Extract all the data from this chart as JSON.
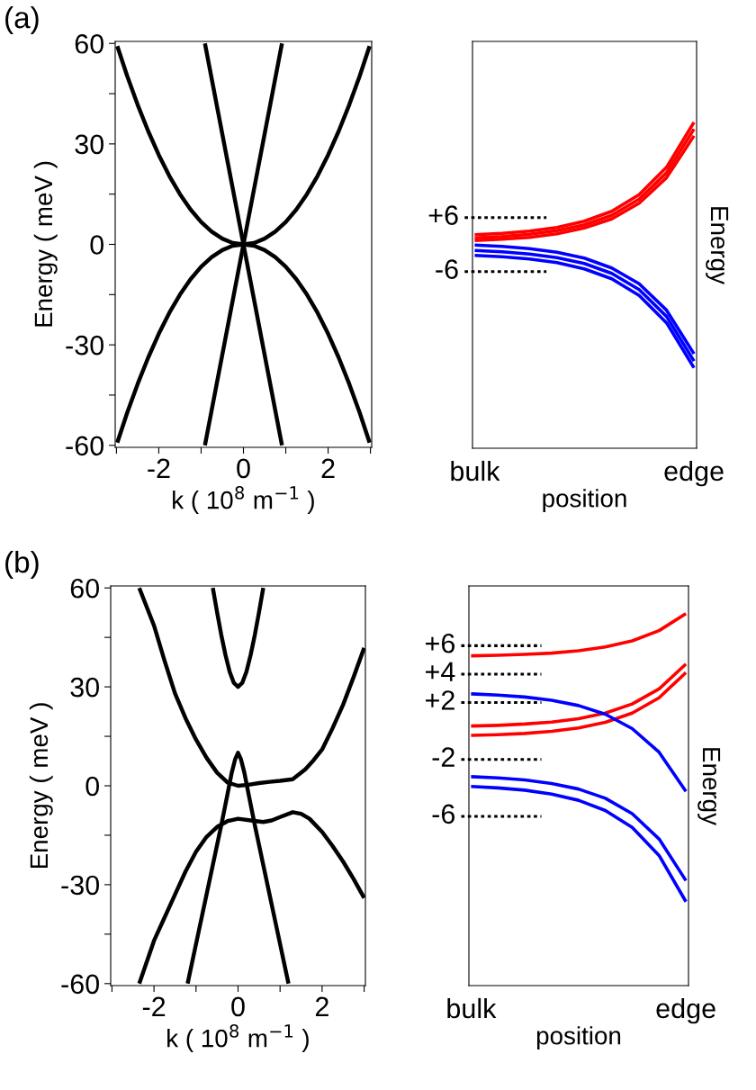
{
  "chart_data": [
    {
      "type": "line",
      "title": "(a)",
      "xlabel": "k ( 10$^{8}$ m$^{−1}$ )",
      "ylabel": "Energy ( meV )",
      "xlim": [
        -3.03,
        3.03
      ],
      "ylim": [
        -60.6,
        60.6
      ],
      "xticks": [
        {
          "value": -3,
          "label": null
        },
        -2,
        {
          "value": -1,
          "label": null
        },
        0,
        {
          "value": 1,
          "label": null
        },
        2,
        {
          "value": 3,
          "label": null
        }
      ],
      "yticks": [
        -60,
        {
          "value": -45,
          "label": null
        },
        -30,
        {
          "value": -15,
          "label": null
        },
        0,
        {
          "value": 15,
          "label": null
        },
        30,
        {
          "value": 45,
          "label": null
        },
        60
      ],
      "series": [
        {
          "color": "#000000",
          "x": [
            -2.98,
            -2.75,
            -2.5,
            -2.25,
            -2,
            -1.75,
            -1.5,
            -1.25,
            -1,
            -0.75,
            -0.5,
            -0.25,
            0,
            0.25,
            0.5,
            0.75,
            1,
            1.25,
            1.5,
            1.75,
            2,
            2.25,
            2.5,
            2.75,
            2.98
          ],
          "values": [
            59.2,
            50.4,
            41.7,
            33.8,
            26.7,
            20.4,
            15,
            10.4,
            6.7,
            3.8,
            1.7,
            0.4,
            0,
            0.4,
            1.7,
            3.8,
            6.7,
            10.4,
            15,
            20.4,
            26.7,
            33.8,
            41.7,
            50.4,
            59.2
          ]
        },
        {
          "color": "#000000",
          "x": [
            -2.98,
            -2.75,
            -2.5,
            -2.25,
            -2,
            -1.75,
            -1.5,
            -1.25,
            -1,
            -0.75,
            -0.5,
            -0.25,
            0,
            0.25,
            0.5,
            0.75,
            1,
            1.25,
            1.5,
            1.75,
            2,
            2.25,
            2.5,
            2.75,
            2.98
          ],
          "values": [
            -59.2,
            -50.4,
            -41.7,
            -33.8,
            -26.7,
            -20.4,
            -15,
            -10.4,
            -6.7,
            -3.8,
            -1.7,
            -0.4,
            0,
            -0.4,
            -1.7,
            -3.8,
            -6.7,
            -10.4,
            -15,
            -20.4,
            -26.7,
            -33.8,
            -41.7,
            -50.4,
            -59.2
          ]
        },
        {
          "color": "#000000",
          "x": [
            -0.91,
            0,
            0.91
          ],
          "values": [
            60,
            0,
            -60
          ]
        },
        {
          "color": "#000000",
          "x": [
            -0.91,
            0,
            0.91
          ],
          "values": [
            -60,
            0,
            60
          ]
        }
      ]
    },
    {
      "type": "line",
      "xlabel": "position",
      "ylabel": "Energy",
      "ylim": [
        -45.3,
        45.2
      ],
      "categories": [
        "bulk",
        null,
        null,
        null,
        null,
        null,
        null,
        null,
        "edge"
      ],
      "ref_lines": [
        {
          "axis": "y",
          "value": 6,
          "label": "+6",
          "color": "#000000",
          "line_style": "dotted"
        },
        {
          "axis": "y",
          "value": -6,
          "label": "-6",
          "color": "#000000",
          "line_style": "dotted"
        }
      ],
      "series": [
        {
          "color": "#ff0000",
          "values": [
            2.2,
            2.5,
            3.0,
            3.8,
            5.2,
            7.4,
            11.1,
            17.2,
            27.2
          ]
        },
        {
          "color": "#ff0000",
          "values": [
            1.5,
            1.8,
            2.3,
            3.1,
            4.4,
            6.5,
            10.1,
            16.0,
            25.7
          ]
        },
        {
          "color": "#ff0000",
          "values": [
            0.9,
            1.2,
            1.6,
            2.4,
            3.7,
            5.7,
            9.2,
            14.9,
            24.2
          ]
        },
        {
          "color": "#0000ff",
          "values": [
            -0.1,
            -0.4,
            -0.9,
            -1.7,
            -3.0,
            -5.2,
            -8.7,
            -14.6,
            -24.3
          ]
        },
        {
          "color": "#0000ff",
          "values": [
            -1.3,
            -1.6,
            -2.1,
            -2.9,
            -4.2,
            -6.4,
            -10.0,
            -16.0,
            -25.9
          ]
        },
        {
          "color": "#0000ff",
          "values": [
            -2.4,
            -2.7,
            -3.2,
            -4.0,
            -5.4,
            -7.6,
            -11.3,
            -17.4,
            -27.4
          ]
        }
      ]
    },
    {
      "type": "line",
      "title": "(b)",
      "xlabel": "k ( 10$^{8}$ m$^{−1}$ )",
      "ylabel": "Energy ( meV )",
      "xlim": [
        -3.03,
        3.03
      ],
      "ylim": [
        -60.6,
        60.6
      ],
      "xticks": [
        {
          "value": -3,
          "label": null
        },
        -2,
        {
          "value": -1,
          "label": null
        },
        0,
        {
          "value": 1,
          "label": null
        },
        2,
        {
          "value": 3,
          "label": null
        }
      ],
      "yticks": [
        -60,
        {
          "value": -45,
          "label": null
        },
        -30,
        {
          "value": -15,
          "label": null
        },
        0,
        {
          "value": 15,
          "label": null
        },
        30,
        {
          "value": 45,
          "label": null
        },
        60
      ],
      "series": [
        {
          "color": "#000000",
          "x": [
            -0.6,
            -0.5,
            -0.4,
            -0.3,
            -0.2,
            -0.1,
            0,
            0.1,
            0.2,
            0.3,
            0.4,
            0.5,
            0.6
          ],
          "values": [
            60,
            52.7,
            45.8,
            39.7,
            34.6,
            31.2,
            30,
            31.2,
            34.6,
            39.7,
            45.8,
            52.7,
            60
          ]
        },
        {
          "color": "#000000",
          "x": [
            -2.35,
            -2,
            -1.75,
            -1.5,
            -1.25,
            -1,
            -0.75,
            -0.5,
            -0.25,
            0,
            0.25,
            0.5,
            0.75,
            1,
            1.3,
            1.6,
            1.8,
            2,
            2.25,
            2.5,
            2.75,
            3
          ],
          "values": [
            60,
            48.6,
            38,
            28,
            20.5,
            14,
            8.5,
            4,
            1,
            0,
            0.3,
            0.8,
            1.2,
            1.5,
            2,
            5,
            7.8,
            11,
            17.5,
            24.6,
            33,
            41.8
          ]
        },
        {
          "color": "#000000",
          "x": [
            -2.35,
            -2,
            -1.75,
            -1.5,
            -1.25,
            -1,
            -0.75,
            -0.5,
            -0.25,
            0,
            0.3,
            0.6,
            0.8,
            1,
            1.3,
            1.5,
            1.7,
            2,
            2.25,
            2.5,
            2.75,
            3
          ],
          "values": [
            -60,
            -47,
            -40,
            -33,
            -26,
            -20,
            -15.5,
            -12.5,
            -10.7,
            -10,
            -10.5,
            -11,
            -10.5,
            -9.5,
            -8,
            -8.5,
            -10,
            -14,
            -18.3,
            -23,
            -28.3,
            -34
          ]
        },
        {
          "color": "#000000",
          "x": [
            -1.2,
            -0.9,
            -0.6,
            -0.4,
            -0.25,
            -0.15,
            -0.07,
            0,
            0.07,
            0.15,
            0.25,
            0.4,
            0.6,
            0.9,
            1.2
          ],
          "values": [
            -60,
            -42,
            -24,
            -12,
            -2.5,
            4,
            8,
            10,
            8,
            4,
            -2.5,
            -12,
            -24,
            -42,
            -60
          ]
        }
      ]
    },
    {
      "type": "line",
      "xlabel": "position",
      "ylabel": "Energy",
      "ylim": [
        -17.9,
        10.2
      ],
      "categories": [
        "bulk",
        null,
        null,
        null,
        null,
        null,
        null,
        null,
        "edge"
      ],
      "ref_lines": [
        {
          "axis": "y",
          "value": 6,
          "label": "+6",
          "color": "#000000",
          "line_style": "dotted"
        },
        {
          "axis": "y",
          "value": 4,
          "label": "+4",
          "color": "#000000",
          "line_style": "dotted"
        },
        {
          "axis": "y",
          "value": 2,
          "label": "+2",
          "color": "#000000",
          "line_style": "dotted"
        },
        {
          "axis": "y",
          "value": -2,
          "label": "-2",
          "color": "#000000",
          "line_style": "dotted"
        },
        {
          "axis": "y",
          "value": -6,
          "label": "-6",
          "color": "#000000",
          "line_style": "dotted"
        }
      ],
      "series": [
        {
          "color": "#ff0000",
          "values": [
            5.29,
            5.33,
            5.39,
            5.48,
            5.64,
            5.91,
            6.34,
            7.06,
            8.25
          ]
        },
        {
          "color": "#ff0000",
          "values": [
            0.35,
            0.4,
            0.49,
            0.63,
            0.87,
            1.26,
            1.9,
            2.96,
            4.71
          ]
        },
        {
          "color": "#ff0000",
          "values": [
            -0.31,
            -0.26,
            -0.17,
            -0.02,
            0.22,
            0.61,
            1.26,
            2.34,
            4.11
          ]
        },
        {
          "color": "#0000ff",
          "values": [
            2.61,
            2.53,
            2.39,
            2.16,
            1.79,
            1.18,
            0.17,
            -1.49,
            -4.24
          ]
        },
        {
          "color": "#0000ff",
          "values": [
            -3.21,
            -3.3,
            -3.44,
            -3.69,
            -4.08,
            -4.73,
            -5.81,
            -7.59,
            -10.52
          ]
        },
        {
          "color": "#0000ff",
          "values": [
            -3.9,
            -4.0,
            -4.16,
            -4.43,
            -4.87,
            -5.59,
            -6.78,
            -8.75,
            -12.0
          ]
        }
      ]
    }
  ]
}
